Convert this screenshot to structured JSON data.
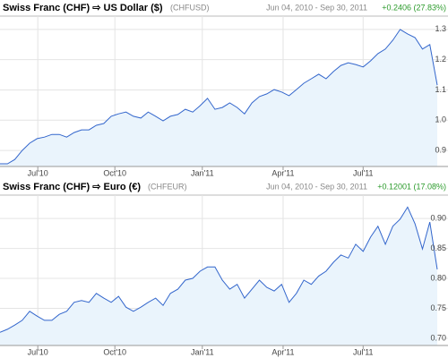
{
  "chart_data": [
    {
      "type": "line",
      "title": "Swiss Franc (CHF) ⇨ US Dollar ($)",
      "subtitle": "(CHFUSD)",
      "date_range": "Jun 04, 2010 - Sep 30, 2011",
      "change": "+0.2406 (27.83%)",
      "color": "#3366cc",
      "fill": "#eaf4fc",
      "grid": true,
      "values": [
        0.856,
        0.856,
        0.87,
        0.9,
        0.924,
        0.939,
        0.944,
        0.953,
        0.953,
        0.944,
        0.959,
        0.968,
        0.968,
        0.983,
        0.989,
        1.013,
        1.021,
        1.027,
        1.013,
        1.007,
        1.027,
        1.013,
        0.998,
        1.013,
        1.019,
        1.036,
        1.027,
        1.048,
        1.072,
        1.036,
        1.042,
        1.057,
        1.042,
        1.021,
        1.057,
        1.078,
        1.087,
        1.101,
        1.093,
        1.081,
        1.101,
        1.122,
        1.137,
        1.152,
        1.137,
        1.161,
        1.181,
        1.19,
        1.184,
        1.176,
        1.196,
        1.22,
        1.235,
        1.264,
        1.3,
        1.285,
        1.273,
        1.235,
        1.25,
        1.116
      ],
      "xlim": [
        0,
        59
      ],
      "xticks": [
        {
          "value": 5.1,
          "label": "Jul'10"
        },
        {
          "value": 15.5,
          "label": "Oct'10"
        },
        {
          "value": 27.3,
          "label": "Jan'11"
        },
        {
          "value": 38.2,
          "label": "Apr'11"
        },
        {
          "value": 49.0,
          "label": "Jul'11"
        }
      ],
      "ylim": [
        0.847,
        1.344
      ],
      "yticks": [
        1.3,
        1.2,
        1.1,
        {
          "value": 1,
          "label": "1.0"
        },
        0.9
      ]
    },
    {
      "type": "line",
      "title": "Swiss Franc (CHF) ⇨ Euro (€)",
      "subtitle": "(CHFEUR)",
      "date_range": "Jun 04, 2010 - Sep 30, 2011",
      "change": "+0.12001 (17.08%)",
      "color": "#3366cc",
      "fill": "#eaf4fc",
      "grid": true,
      "values": [
        0.71,
        0.715,
        0.722,
        0.73,
        0.745,
        0.737,
        0.73,
        0.73,
        0.74,
        0.745,
        0.76,
        0.763,
        0.76,
        0.775,
        0.767,
        0.76,
        0.77,
        0.752,
        0.745,
        0.752,
        0.76,
        0.767,
        0.755,
        0.775,
        0.782,
        0.797,
        0.8,
        0.812,
        0.819,
        0.819,
        0.797,
        0.782,
        0.79,
        0.767,
        0.782,
        0.797,
        0.785,
        0.779,
        0.79,
        0.76,
        0.775,
        0.797,
        0.79,
        0.804,
        0.812,
        0.827,
        0.839,
        0.834,
        0.857,
        0.845,
        0.869,
        0.887,
        0.857,
        0.887,
        0.899,
        0.919,
        0.891,
        0.849,
        0.894,
        0.815
      ],
      "xlim": [
        0,
        59
      ],
      "xticks": [
        {
          "value": 5.1,
          "label": "Jul'10"
        },
        {
          "value": 15.5,
          "label": "Oct'10"
        },
        {
          "value": 27.3,
          "label": "Jan'11"
        },
        {
          "value": 38.2,
          "label": "Apr'11"
        },
        {
          "value": 49.0,
          "label": "Jul'11"
        }
      ],
      "ylim": [
        0.688,
        0.939
      ],
      "yticks": [
        {
          "value": 0.9,
          "label": "0.90"
        },
        0.85,
        {
          "value": 0.8,
          "label": "0.80"
        },
        0.75,
        {
          "value": 0.7,
          "label": "0.70"
        }
      ]
    }
  ]
}
